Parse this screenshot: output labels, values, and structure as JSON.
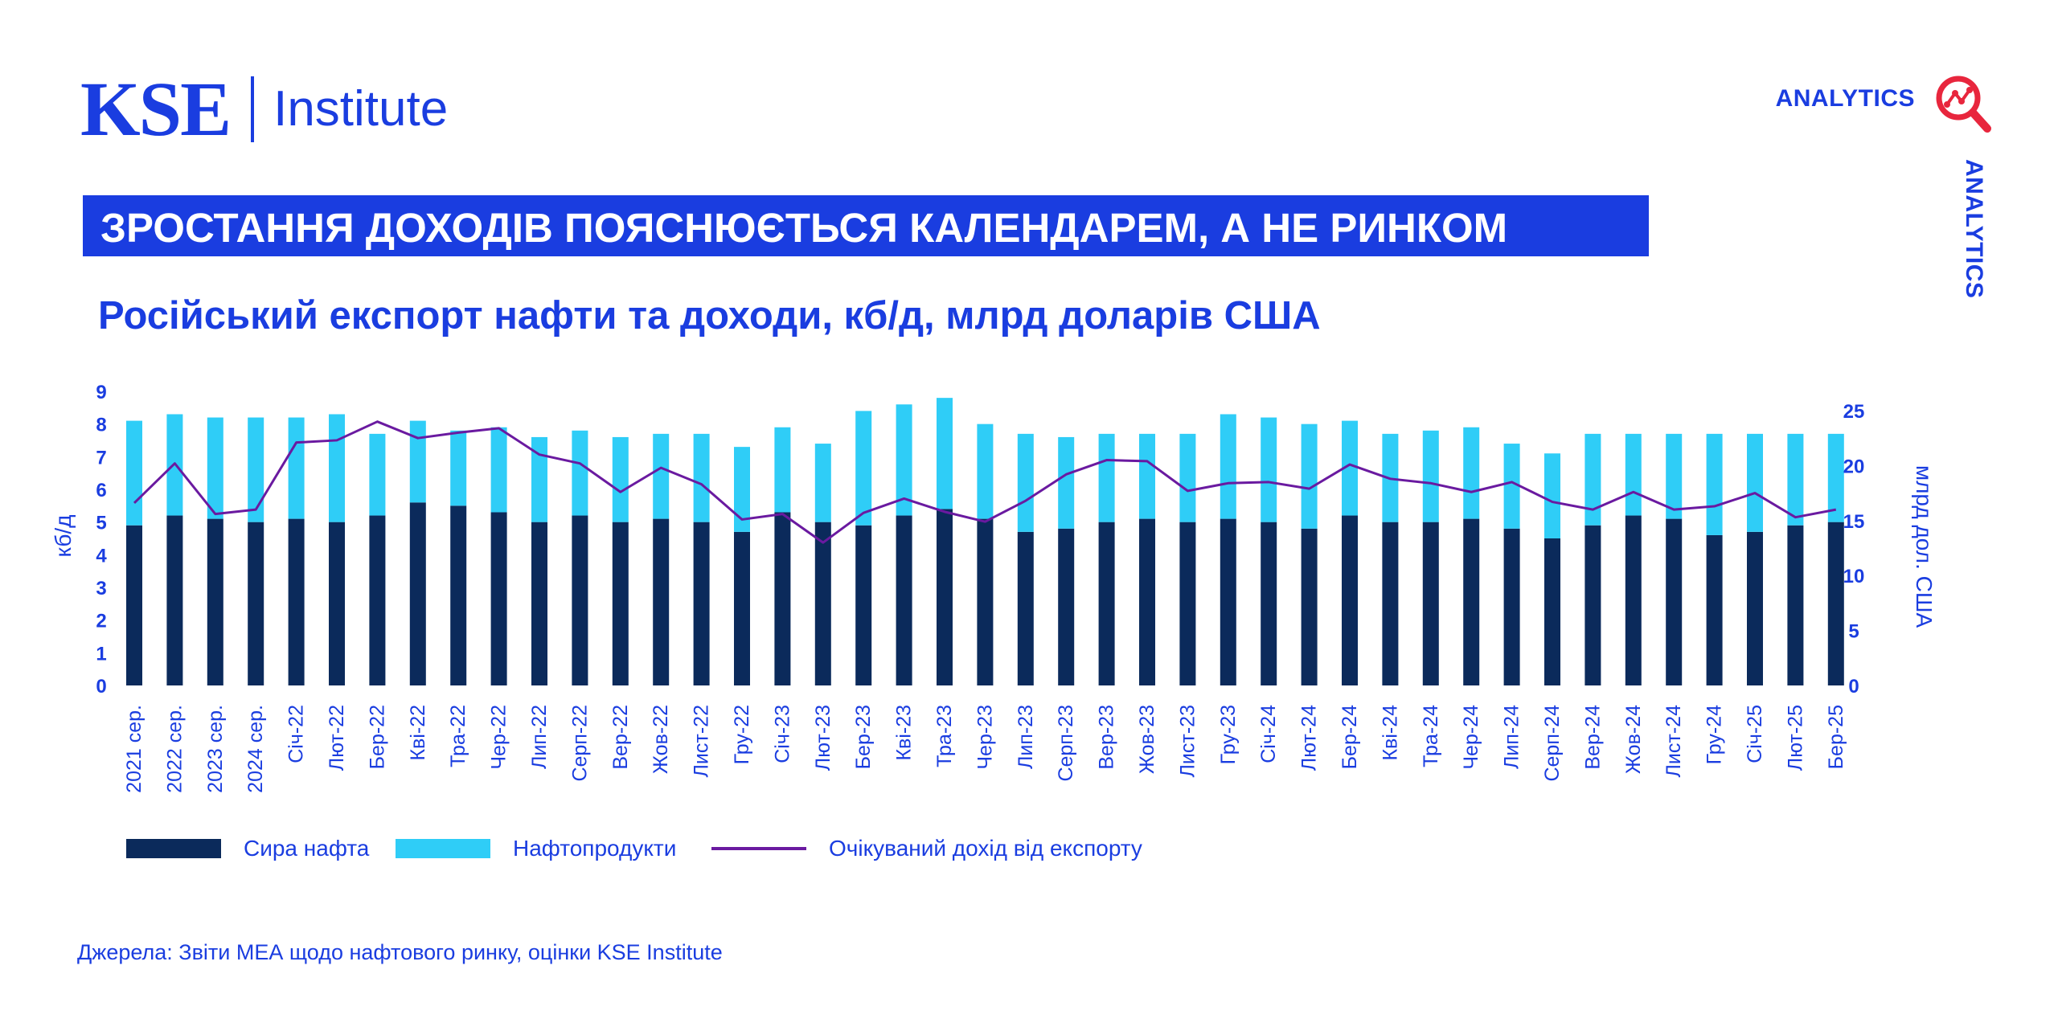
{
  "brand": {
    "kse": "KSE",
    "institute": "Institute",
    "analytics": "ANALYTICS",
    "analytics_vertical": "ANALYTICS"
  },
  "headline": "ЗРОСТАННЯ ДОХОДІВ ПОЯСНЮЄТЬСЯ КАЛЕНДАРЕМ, А НЕ РИНКОМ",
  "subtitle": "Російський експорт нафти та доходи, кб/д, млрд доларів США",
  "source": "Джерела: Звіти МЕА щодо нафтового ринку, оцінки KSE Institute",
  "colors": {
    "crude": "#0b2a5b",
    "products": "#2fcdf7",
    "revenue": "#6a1aa0",
    "accent": "#1a3de0",
    "icon_red": "#e8263d"
  },
  "legend": {
    "crude": "Сира нафта",
    "products": "Нафтопродукти",
    "revenue": "Очікуваний дохід від експорту"
  },
  "chart_data": {
    "type": "bar",
    "stacked": true,
    "categories": [
      "2021 сер.",
      "2022 сер.",
      "2023 сер.",
      "2024 сер.",
      "Січ-22",
      "Лют-22",
      "Бер-22",
      "Кві-22",
      "Тра-22",
      "Чер-22",
      "Лип-22",
      "Серп-22",
      "Вер-22",
      "Жов-22",
      "Лист-22",
      "Гру-22",
      "Січ-23",
      "Лют-23",
      "Бер-23",
      "Кві-23",
      "Тра-23",
      "Чер-23",
      "Лип-23",
      "Серп-23",
      "Вер-23",
      "Жов-23",
      "Лист-23",
      "Гру-23",
      "Січ-24",
      "Лют-24",
      "Бер-24",
      "Кві-24",
      "Тра-24",
      "Чер-24",
      "Лип-24",
      "Серп-24",
      "Вер-24",
      "Жов-24",
      "Лист-24",
      "Гру-24",
      "Січ-25",
      "Лют-25",
      "Бер-25"
    ],
    "series": [
      {
        "name": "Сира нафта",
        "axis": "left",
        "values": [
          4.9,
          5.2,
          5.1,
          5.0,
          5.1,
          5.0,
          5.2,
          5.6,
          5.5,
          5.3,
          5.0,
          5.2,
          5.0,
          5.1,
          5.0,
          4.7,
          5.3,
          5.0,
          4.9,
          5.2,
          5.4,
          5.1,
          4.7,
          4.8,
          5.0,
          5.1,
          5.0,
          5.1,
          5.0,
          4.8,
          5.2,
          5.0,
          5.0,
          5.1,
          4.8,
          4.5,
          4.9,
          5.2,
          5.1,
          4.6,
          4.7,
          4.9,
          5.0
        ]
      },
      {
        "name": "Нафтопродукти",
        "axis": "left",
        "values": [
          3.2,
          3.1,
          3.1,
          3.2,
          3.1,
          3.3,
          2.5,
          2.5,
          2.3,
          2.6,
          2.6,
          2.6,
          2.6,
          2.6,
          2.7,
          2.6,
          2.6,
          2.4,
          3.5,
          3.4,
          3.4,
          2.9,
          3.0,
          2.8,
          2.7,
          2.6,
          2.7,
          3.2,
          3.2,
          3.2,
          2.9,
          2.7,
          2.8,
          2.8,
          2.6,
          2.6,
          2.8,
          2.5,
          2.6,
          3.1,
          3.0,
          2.8,
          2.7
        ]
      },
      {
        "name": "Очікуваний дохід від експорту",
        "axis": "right",
        "type": "line",
        "values": [
          16.6,
          20.2,
          15.6,
          16.0,
          22.1,
          22.3,
          24.0,
          22.5,
          23.0,
          23.4,
          21.0,
          20.2,
          17.6,
          19.8,
          18.3,
          15.1,
          15.6,
          13.0,
          15.7,
          17.0,
          15.8,
          14.9,
          16.8,
          19.2,
          20.5,
          20.4,
          17.7,
          18.4,
          18.5,
          17.9,
          20.1,
          18.8,
          18.4,
          17.6,
          18.5,
          16.7,
          16.0,
          17.6,
          16.0,
          16.3,
          17.5,
          15.3,
          16.0
        ]
      }
    ],
    "ylabel": "кб/д",
    "y2label": "млрд дол. США",
    "ylim": [
      0,
      9
    ],
    "yticks": [
      0,
      1,
      2,
      3,
      4,
      5,
      6,
      7,
      8,
      9
    ],
    "y2lim": [
      0,
      25
    ],
    "y2ticks": [
      0,
      5,
      10,
      15,
      20,
      25
    ],
    "grid": false,
    "legend_position": "bottom-left"
  }
}
